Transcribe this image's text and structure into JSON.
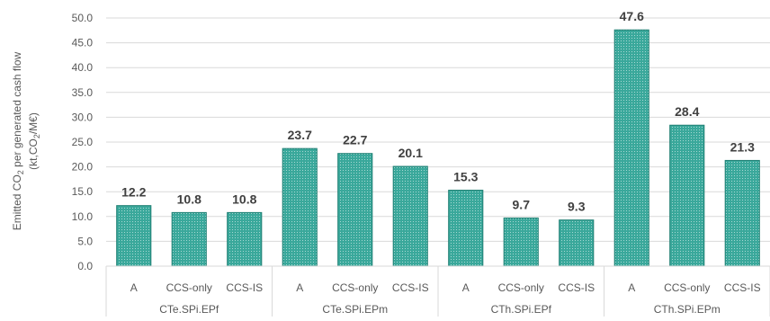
{
  "chart_data": {
    "type": "bar",
    "ylabel_line1": "Emitted CO",
    "ylabel_line1_sub": "2",
    "ylabel_line1_rest": " per generated cash flow",
    "ylabel_line2_pre": "(kt,CO",
    "ylabel_line2_sub": "2",
    "ylabel_line2_post": "/M€)",
    "ylim": [
      0,
      50
    ],
    "yticks": [
      "0.0",
      "5.0",
      "10.0",
      "15.0",
      "20.0",
      "25.0",
      "30.0",
      "35.0",
      "40.0",
      "45.0",
      "50.0"
    ],
    "grid": true,
    "groups": [
      {
        "name": "CTe.SPi.EPf",
        "categories": [
          "A",
          "CCS-only",
          "CCS-IS"
        ],
        "values": [
          12.2,
          10.8,
          10.8
        ]
      },
      {
        "name": "CTe.SPi.EPm",
        "categories": [
          "A",
          "CCS-only",
          "CCS-IS"
        ],
        "values": [
          23.7,
          22.7,
          20.1
        ]
      },
      {
        "name": "CTh.SPi.EPf",
        "categories": [
          "A",
          "CCS-only",
          "CCS-IS"
        ],
        "values": [
          15.3,
          9.7,
          9.3
        ]
      },
      {
        "name": "CTh.SPi.EPm",
        "categories": [
          "A",
          "CCS-only",
          "CCS-IS"
        ],
        "values": [
          47.6,
          28.4,
          21.3
        ]
      }
    ],
    "bar_color": "#3aa89b",
    "bar_pattern_color": "#ffffff"
  }
}
